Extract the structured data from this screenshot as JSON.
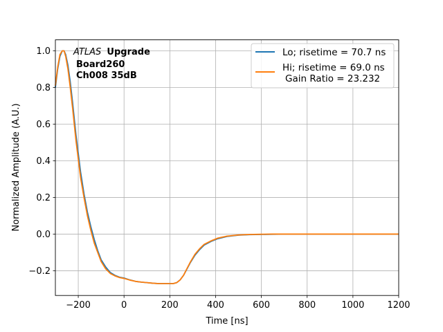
{
  "chart_data": {
    "type": "line",
    "xlabel": "Time [ns]",
    "ylabel": "Normalized Amplitude (A.U.)",
    "xlim": [
      -300,
      1200
    ],
    "ylim": [
      -0.335,
      1.06
    ],
    "xticks": [
      -200,
      0,
      200,
      400,
      600,
      800,
      1000,
      1200
    ],
    "xtick_labels": [
      "−200",
      "0",
      "200",
      "400",
      "600",
      "800",
      "1000",
      "1200"
    ],
    "yticks": [
      -0.2,
      0.0,
      0.2,
      0.4,
      0.6,
      0.8,
      1.0
    ],
    "ytick_labels": [
      "−0.2",
      "0.0",
      "0.2",
      "0.4",
      "0.6",
      "0.8",
      "1.0"
    ],
    "grid": true,
    "legend_position": "top-right",
    "annotation": {
      "experiment": "ATLAS",
      "tag": "Upgrade",
      "line2": "Board260",
      "line3": "Ch008 35dB"
    },
    "series": [
      {
        "name": "Lo; risetime = 70.7 ns",
        "color": "#1f77b4",
        "x": [
          -300,
          -290,
          -280,
          -270,
          -262,
          -255,
          -245,
          -235,
          -225,
          -210,
          -200,
          -190,
          -175,
          -160,
          -145,
          -130,
          -115,
          -100,
          -80,
          -60,
          -40,
          -20,
          0,
          25,
          50,
          75,
          100,
          125,
          150,
          175,
          200,
          215,
          230,
          245,
          260,
          275,
          290,
          310,
          330,
          350,
          380,
          410,
          450,
          500,
          550,
          600,
          650,
          700,
          800,
          900,
          1000,
          1100,
          1200
        ],
        "y": [
          0.8,
          0.9,
          0.97,
          1.0,
          1.0,
          0.98,
          0.92,
          0.83,
          0.72,
          0.54,
          0.44,
          0.34,
          0.22,
          0.12,
          0.04,
          -0.03,
          -0.09,
          -0.14,
          -0.18,
          -0.21,
          -0.225,
          -0.235,
          -0.24,
          -0.25,
          -0.258,
          -0.262,
          -0.265,
          -0.268,
          -0.27,
          -0.27,
          -0.27,
          -0.27,
          -0.265,
          -0.25,
          -0.225,
          -0.19,
          -0.155,
          -0.115,
          -0.085,
          -0.06,
          -0.04,
          -0.025,
          -0.013,
          -0.006,
          -0.003,
          -0.002,
          -0.001,
          0.0,
          0.0,
          0.0,
          0.0,
          0.0,
          0.0
        ]
      },
      {
        "name": "Hi; risetime = 69.0 ns",
        "name_line2": "Gain Ratio = 23.232",
        "color": "#ff7f0e",
        "x": [
          -300,
          -290,
          -280,
          -270,
          -262,
          -255,
          -245,
          -235,
          -225,
          -210,
          -200,
          -190,
          -175,
          -160,
          -145,
          -130,
          -115,
          -100,
          -80,
          -60,
          -40,
          -20,
          0,
          25,
          50,
          75,
          100,
          125,
          150,
          175,
          200,
          215,
          230,
          245,
          260,
          275,
          290,
          310,
          330,
          350,
          380,
          410,
          450,
          500,
          550,
          600,
          650,
          700,
          800,
          900,
          1000,
          1100,
          1200
        ],
        "y": [
          0.81,
          0.91,
          0.98,
          1.0,
          1.0,
          0.97,
          0.9,
          0.8,
          0.69,
          0.51,
          0.41,
          0.31,
          0.2,
          0.1,
          0.02,
          -0.05,
          -0.1,
          -0.15,
          -0.19,
          -0.215,
          -0.228,
          -0.237,
          -0.242,
          -0.251,
          -0.258,
          -0.262,
          -0.265,
          -0.268,
          -0.27,
          -0.27,
          -0.27,
          -0.27,
          -0.265,
          -0.25,
          -0.225,
          -0.188,
          -0.152,
          -0.11,
          -0.08,
          -0.056,
          -0.037,
          -0.022,
          -0.011,
          -0.005,
          -0.002,
          -0.001,
          0.0,
          0.0,
          0.0,
          0.0,
          0.0,
          0.0,
          0.0
        ]
      }
    ]
  }
}
